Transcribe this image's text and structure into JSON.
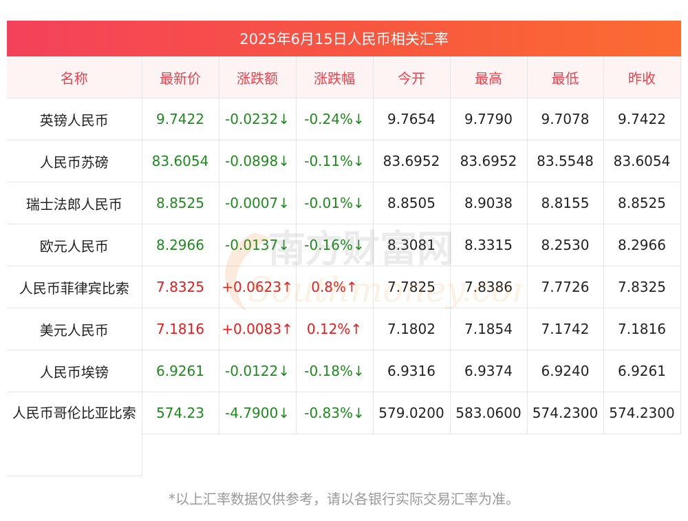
{
  "title": "2025年6月15日人民币相关汇率",
  "headers": [
    "名称",
    "最新价",
    "涨跌额",
    "涨跌幅",
    "今开",
    "最高",
    "最低",
    "昨收"
  ],
  "rows": [
    {
      "name": "英镑人民币",
      "latest": "9.7422",
      "change": "-0.0232↓",
      "pct": "-0.24%↓",
      "open": "9.7654",
      "high": "9.7790",
      "low": "9.7078",
      "prev": "9.7422",
      "dir": "down"
    },
    {
      "name": "人民币苏磅",
      "latest": "83.6054",
      "change": "-0.0898↓",
      "pct": "-0.11%↓",
      "open": "83.6952",
      "high": "83.6952",
      "low": "83.5548",
      "prev": "83.6054",
      "dir": "down"
    },
    {
      "name": "瑞士法郎人民币",
      "latest": "8.8525",
      "change": "-0.0007↓",
      "pct": "-0.01%↓",
      "open": "8.8505",
      "high": "8.9038",
      "low": "8.8155",
      "prev": "8.8525",
      "dir": "down"
    },
    {
      "name": "欧元人民币",
      "latest": "8.2966",
      "change": "-0.0137↓",
      "pct": "-0.16%↓",
      "open": "8.3081",
      "high": "8.3315",
      "low": "8.2530",
      "prev": "8.2966",
      "dir": "down"
    },
    {
      "name": "人民币菲律宾比索",
      "latest": "7.8325",
      "change": "+0.0623↑",
      "pct": "0.8%↑",
      "open": "7.7825",
      "high": "7.8386",
      "low": "7.7726",
      "prev": "7.8325",
      "dir": "up"
    },
    {
      "name": "美元人民币",
      "latest": "7.1816",
      "change": "+0.0083↑",
      "pct": "0.12%↑",
      "open": "7.1802",
      "high": "7.1854",
      "low": "7.1742",
      "prev": "7.1816",
      "dir": "up"
    },
    {
      "name": "人民币埃镑",
      "latest": "6.9261",
      "change": "-0.0122↓",
      "pct": "-0.18%↓",
      "open": "6.9316",
      "high": "6.9374",
      "low": "6.9240",
      "prev": "6.9261",
      "dir": "down"
    },
    {
      "name": "人民币哥伦比亚比索",
      "latest": "574.23",
      "change": "-4.7900↓",
      "pct": "-0.83%↓",
      "open": "579.0200",
      "high": "583.0600",
      "low": "574.2300",
      "prev": "574.2300",
      "dir": "down"
    }
  ],
  "watermark": {
    "cn": "南方财富网",
    "en": "Southmoney.com"
  },
  "footer": "*以上汇率数据仅供参考，请以各银行实际交易汇率为准。",
  "colors": {
    "up": "#e81c1c",
    "down": "#1e8a1e",
    "header_text": "#e8434f",
    "title_bg_start": "#f4415b",
    "title_bg_end": "#fb6b31"
  }
}
